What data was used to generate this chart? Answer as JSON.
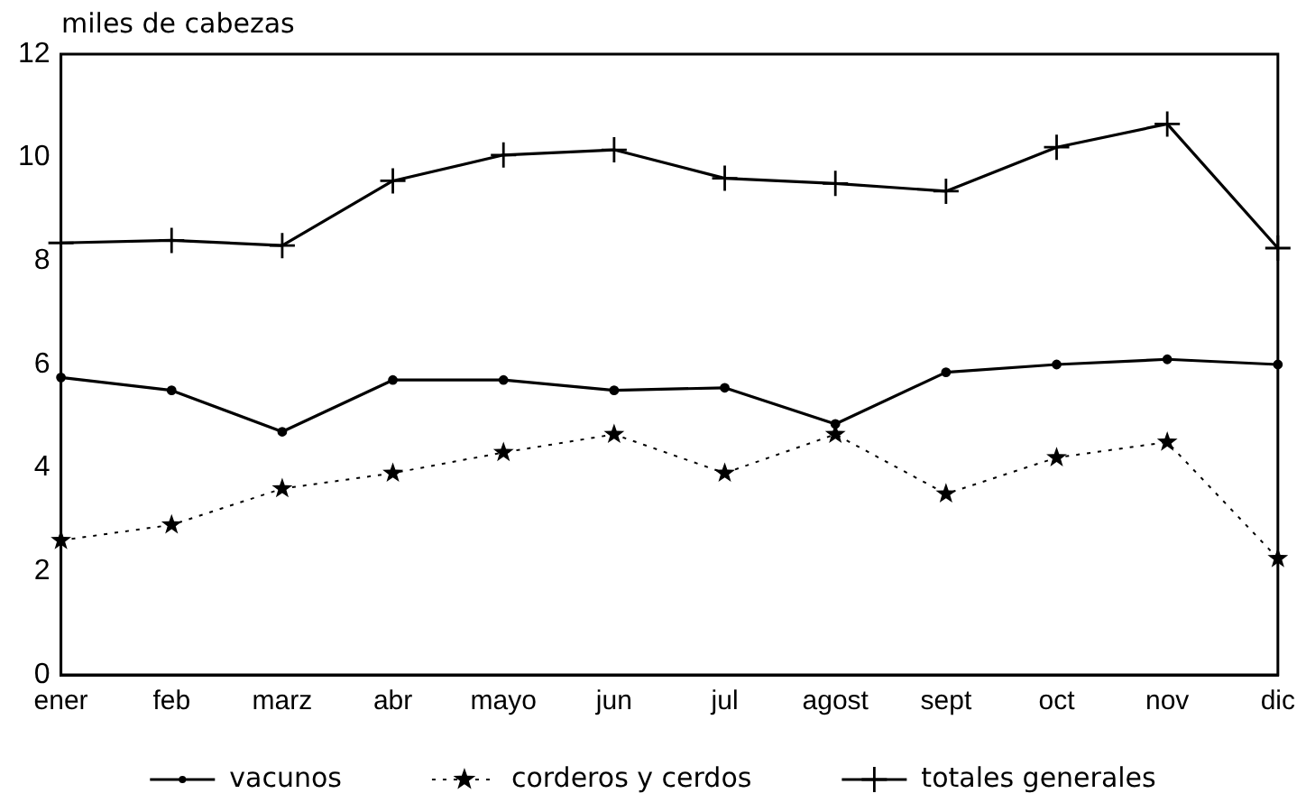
{
  "chart_data": {
    "type": "line",
    "ylabel": "miles de cabezas",
    "categories": [
      "ener",
      "feb",
      "marz",
      "abr",
      "mayo",
      "jun",
      "jul",
      "agost",
      "sept",
      "oct",
      "nov",
      "dic"
    ],
    "series": [
      {
        "name": "vacunos",
        "color": "#000000",
        "marker": "circle",
        "line_style": "solid",
        "values": [
          5.75,
          5.5,
          4.7,
          5.7,
          5.7,
          5.5,
          5.55,
          4.85,
          5.85,
          6.0,
          6.1,
          6.0
        ]
      },
      {
        "name": "corderos y cerdos",
        "color": "#000000",
        "marker": "star",
        "line_style": "dotted",
        "values": [
          2.6,
          2.9,
          3.6,
          3.9,
          4.3,
          4.65,
          3.9,
          4.65,
          3.5,
          4.2,
          4.5,
          2.25
        ]
      },
      {
        "name": "totales generales",
        "color": "#000000",
        "marker": "cross",
        "line_style": "solid",
        "values": [
          8.35,
          8.4,
          8.3,
          9.55,
          10.05,
          10.15,
          9.6,
          9.5,
          9.35,
          10.2,
          10.65,
          8.25
        ]
      }
    ],
    "ylim": [
      0,
      12
    ],
    "yticks": [
      0,
      2,
      4,
      6,
      8,
      10,
      12
    ],
    "grid": false,
    "legend": "bottom"
  }
}
